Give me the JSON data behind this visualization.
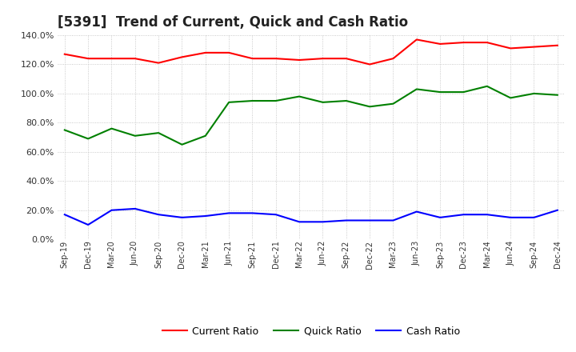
{
  "title": "[5391]  Trend of Current, Quick and Cash Ratio",
  "x_labels": [
    "Sep-19",
    "Dec-19",
    "Mar-20",
    "Jun-20",
    "Sep-20",
    "Dec-20",
    "Mar-21",
    "Jun-21",
    "Sep-21",
    "Dec-21",
    "Mar-22",
    "Jun-22",
    "Sep-22",
    "Dec-22",
    "Mar-23",
    "Jun-23",
    "Sep-23",
    "Dec-23",
    "Mar-24",
    "Jun-24",
    "Sep-24",
    "Dec-24"
  ],
  "current_ratio": [
    127,
    124,
    124,
    124,
    121,
    125,
    128,
    128,
    124,
    124,
    123,
    124,
    124,
    120,
    124,
    137,
    134,
    135,
    135,
    131,
    132,
    133
  ],
  "quick_ratio": [
    75,
    69,
    76,
    71,
    73,
    65,
    71,
    94,
    95,
    95,
    98,
    94,
    95,
    91,
    93,
    103,
    101,
    101,
    105,
    97,
    100,
    99
  ],
  "cash_ratio": [
    17,
    10,
    20,
    21,
    17,
    15,
    16,
    18,
    18,
    17,
    12,
    12,
    13,
    13,
    13,
    19,
    15,
    17,
    17,
    15,
    15,
    20
  ],
  "ylim": [
    0,
    140
  ],
  "yticks": [
    0,
    20,
    40,
    60,
    80,
    100,
    120,
    140
  ],
  "current_color": "#ff0000",
  "quick_color": "#008000",
  "cash_color": "#0000ff",
  "bg_color": "#ffffff",
  "plot_bg_color": "#ffffff",
  "grid_color": "#bbbbbb",
  "title_fontsize": 12,
  "legend_labels": [
    "Current Ratio",
    "Quick Ratio",
    "Cash Ratio"
  ]
}
